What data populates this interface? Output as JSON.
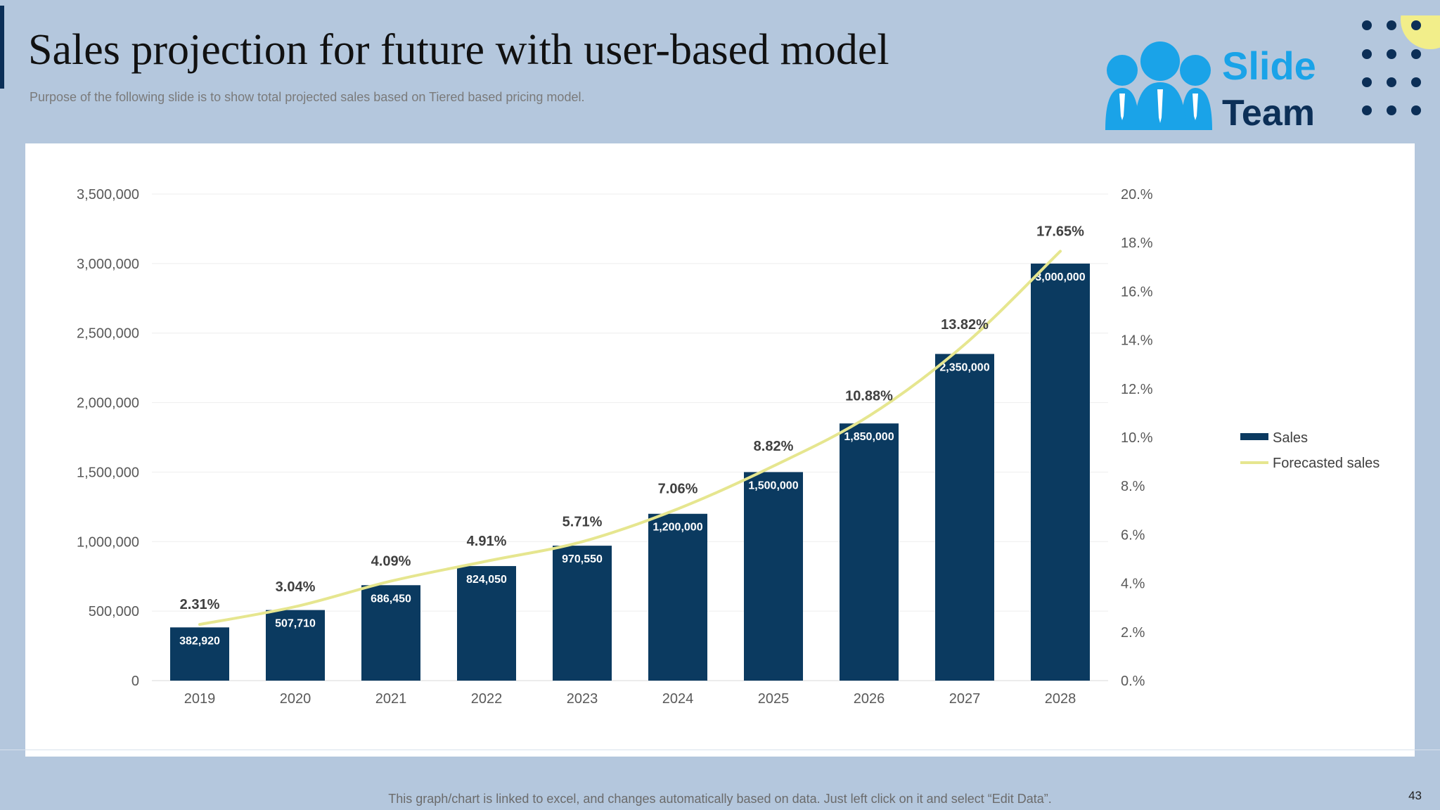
{
  "slide": {
    "title": "Sales projection for future with user-based model",
    "subtitle": "Purpose of the following slide is to show total projected sales based on Tiered based pricing model.",
    "footer_note": "This graph/chart is linked to excel, and changes automatically based on data. Just left click on it and select “Edit Data”.",
    "page_number": "43"
  },
  "logo": {
    "line1": "Slide",
    "line2": "Team",
    "icon": "people-group-icon"
  },
  "colors": {
    "background": "#b4c7dd",
    "bar": "#0b3a60",
    "line": "#e6e68f",
    "logo_blue": "#1aa3e8",
    "logo_navy": "#0c2f57",
    "dot": "#0c2f57",
    "circle_accent": "#f2ee8a"
  },
  "chart_data": {
    "type": "bar+line",
    "categories": [
      "2019",
      "2020",
      "2021",
      "2022",
      "2023",
      "2024",
      "2025",
      "2026",
      "2027",
      "2028"
    ],
    "series": [
      {
        "name": "Sales",
        "type": "bar",
        "axis": "left",
        "values": [
          382920,
          507710,
          686450,
          824050,
          970550,
          1200000,
          1500000,
          1850000,
          2350000,
          3000000
        ],
        "labels": [
          "382,920",
          "507,710",
          "686,450",
          "824,050",
          "970,550",
          "1,200,000",
          "1,500,000",
          "1,850,000",
          "2,350,000",
          "3,000,000"
        ]
      },
      {
        "name": "Forecasted sales",
        "type": "line",
        "axis": "right",
        "values": [
          2.31,
          3.04,
          4.09,
          4.91,
          5.71,
          7.06,
          8.82,
          10.88,
          13.82,
          17.65
        ],
        "labels": [
          "2.31%",
          "3.04%",
          "4.09%",
          "4.91%",
          "5.71%",
          "7.06%",
          "8.82%",
          "10.88%",
          "13.82%",
          "17.65%"
        ]
      }
    ],
    "y_left": {
      "range": [
        0,
        3500000
      ],
      "ticks": [
        0,
        500000,
        1000000,
        1500000,
        2000000,
        2500000,
        3000000,
        3500000
      ],
      "tick_labels": [
        "0",
        "500,000",
        "1,000,000",
        "1,500,000",
        "2,000,000",
        "2,500,000",
        "3,000,000",
        "3,500,000"
      ]
    },
    "y_right": {
      "range": [
        0,
        20
      ],
      "ticks": [
        0,
        2,
        4,
        6,
        8,
        10,
        12,
        14,
        16,
        18,
        20
      ],
      "tick_labels": [
        "0.%",
        "2.%",
        "4.%",
        "6.%",
        "8.%",
        "10.%",
        "12.%",
        "14.%",
        "16.%",
        "18.%",
        "20.%"
      ]
    },
    "legend": {
      "position": "right",
      "entries": [
        {
          "label": "Sales",
          "kind": "bar"
        },
        {
          "label": "Forecasted sales",
          "kind": "line"
        }
      ]
    },
    "gridlines": true
  }
}
